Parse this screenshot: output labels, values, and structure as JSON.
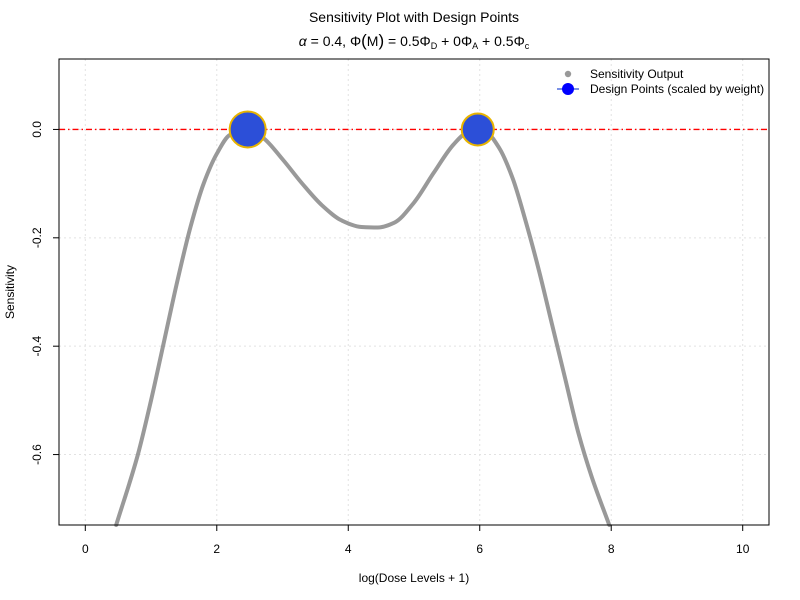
{
  "chart_data": {
    "type": "line",
    "title": "Sensitivity Plot with Design Points",
    "subtitle": {
      "alpha_symbol": "α",
      "alpha_text": " = 0.4, ",
      "phi": "Φ",
      "m_open": "(",
      "m": "M",
      "m_close": ")",
      "eq_d": " = 0.5Φ",
      "sub_d": "D",
      "mid_a": " + 0Φ",
      "sub_a": "A",
      "mid_c": " + 0.5Φ",
      "sub_c": "c"
    },
    "xlabel": "log(Dose Levels + 1)",
    "ylabel": "Sensitivity",
    "xlim": [
      -0.4,
      10.4
    ],
    "ylim": [
      -0.73,
      0.13
    ],
    "x_ticks": [
      0,
      2,
      4,
      6,
      8,
      10
    ],
    "x_tick_labels": [
      "0",
      "2",
      "4",
      "6",
      "8",
      "10"
    ],
    "y_ticks": [
      0.0,
      -0.2,
      -0.4,
      -0.6
    ],
    "y_tick_labels": [
      "0.0",
      "-0.2",
      "-0.4",
      "-0.6"
    ],
    "grid": true,
    "legend_position": "top-right",
    "reference_line": {
      "y": 0,
      "color": "#ff0000",
      "style": "dot-dash"
    },
    "series": [
      {
        "name": "Sensitivity Output",
        "color": "#999999",
        "x": [
          0.47,
          0.8,
          1.0,
          1.2,
          1.4,
          1.6,
          1.8,
          2.0,
          2.2,
          2.47,
          2.7,
          3.0,
          3.3,
          3.6,
          3.9,
          4.2,
          4.45,
          4.7,
          5.0,
          5.3,
          5.6,
          5.8,
          5.97,
          6.1,
          6.3,
          6.5,
          6.7,
          6.9,
          7.1,
          7.3,
          7.5,
          7.7,
          7.97
        ],
        "y": [
          -0.73,
          -0.6,
          -0.5,
          -0.39,
          -0.28,
          -0.18,
          -0.1,
          -0.045,
          -0.01,
          0.0,
          -0.015,
          -0.055,
          -0.1,
          -0.14,
          -0.168,
          -0.18,
          -0.181,
          -0.172,
          -0.135,
          -0.08,
          -0.028,
          -0.006,
          0.0,
          -0.005,
          -0.035,
          -0.09,
          -0.17,
          -0.26,
          -0.36,
          -0.46,
          -0.56,
          -0.64,
          -0.73
        ]
      }
    ],
    "design_points": {
      "name": "Design Points (scaled by weight)",
      "fill": "#2c4fd8",
      "stroke": "#e8b400",
      "points": [
        {
          "x": 2.47,
          "y": 0.0,
          "weight": 0.6
        },
        {
          "x": 5.97,
          "y": 0.0,
          "weight": 0.4
        }
      ]
    }
  }
}
